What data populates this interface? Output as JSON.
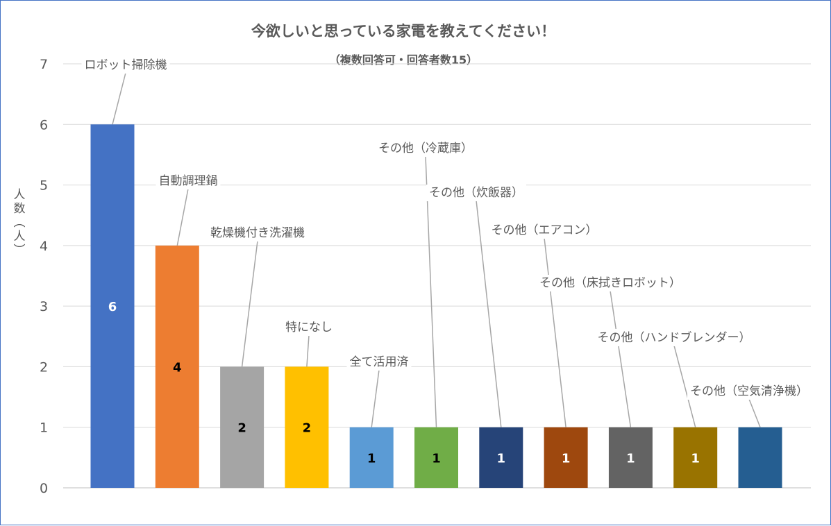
{
  "chart_data": {
    "type": "bar",
    "title": "今欲しいと思っている家電を教えてください！",
    "subtitle": "（複数回答可・回答者数15）",
    "ylabel": "人数（人）",
    "xlabel": "",
    "ylim": [
      0,
      7
    ],
    "yticks": [
      0,
      1,
      2,
      3,
      4,
      5,
      6,
      7
    ],
    "grid": true,
    "categories": [
      "ロボット掃除機",
      "自動調理鍋",
      "乾燥機付き洗濯機",
      "特になし",
      "全て活用済",
      "その他（冷蔵庫）",
      "その他（炊飯器）",
      "その他（エアコン）",
      "その他（床拭きロボット）",
      "その他（ハンドブレンダー）",
      "その他（空気清浄機）"
    ],
    "values": [
      6,
      4,
      2,
      2,
      1,
      1,
      1,
      1,
      1,
      1,
      1
    ],
    "data_labels": [
      "6",
      "4",
      "2",
      "2",
      "1",
      "1",
      "1",
      "1",
      "1",
      "1",
      ""
    ],
    "colors": [
      "#4472c4",
      "#ed7d31",
      "#a5a5a5",
      "#ffc000",
      "#5b9bd5",
      "#70ad47",
      "#264478",
      "#9e480e",
      "#636363",
      "#997300",
      "#255e91"
    ]
  }
}
